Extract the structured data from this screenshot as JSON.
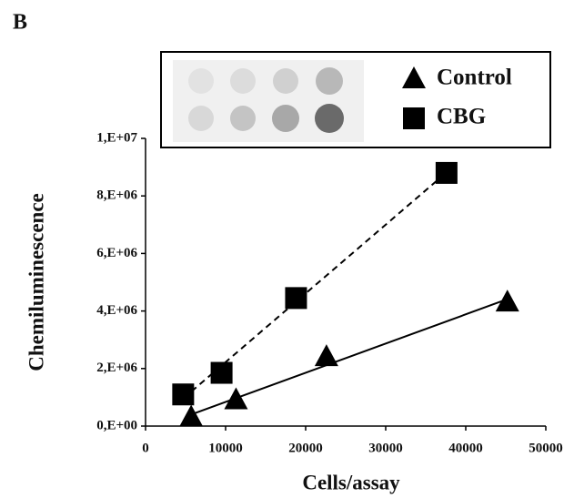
{
  "chart_data": {
    "type": "scatter",
    "panel_label": "B",
    "x_label": "Cells/assay",
    "y_label": "Chemiluminescence",
    "xlim": [
      0,
      50000
    ],
    "xticks": [
      0,
      10000,
      20000,
      30000,
      40000,
      50000
    ],
    "ylim": [
      0,
      10000000
    ],
    "yticks": [
      {
        "value": 0,
        "label": "0,E+00"
      },
      {
        "value": 2000000,
        "label": "2,E+06"
      },
      {
        "value": 4000000,
        "label": "4,E+06"
      },
      {
        "value": 6000000,
        "label": "6,E+06"
      },
      {
        "value": 8000000,
        "label": "8,E+06"
      },
      {
        "value": 10000000,
        "label": "1,E+07"
      }
    ],
    "trendline": "linear",
    "series": [
      {
        "name": "Control",
        "color": "#000000",
        "marker": "triangle",
        "line_style": "solid",
        "x": [
          5700,
          11300,
          22600,
          45200
        ],
        "values": [
          300000,
          900000,
          2400000,
          4300000
        ]
      },
      {
        "name": "CBG",
        "color": "#000000",
        "marker": "square",
        "line_style": "dashed",
        "x": [
          4700,
          9500,
          18800,
          37600
        ],
        "values": [
          1100000,
          1850000,
          4450000,
          8800000
        ]
      }
    ]
  }
}
